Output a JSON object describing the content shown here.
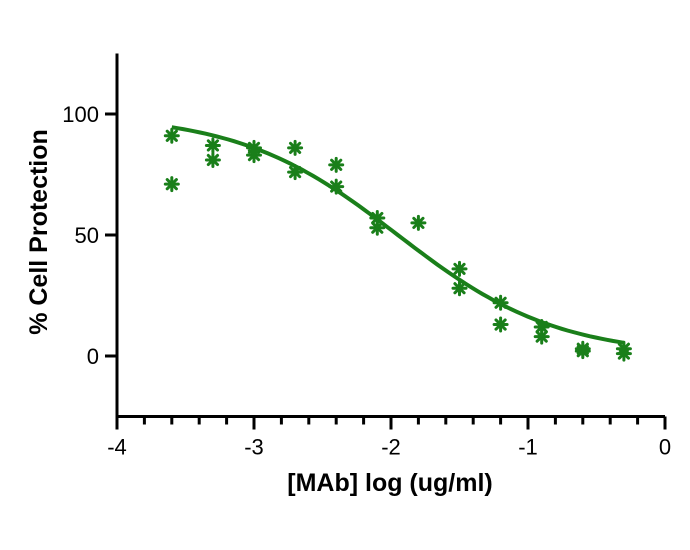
{
  "chart_data": {
    "type": "scatter",
    "title": "",
    "xlabel": "[MAb] log (ug/ml)",
    "ylabel": "% Cell Protection",
    "xlim": [
      -4,
      0
    ],
    "ylim": [
      -25,
      125
    ],
    "x_ticks": [
      -4,
      -3,
      -2,
      -1,
      0
    ],
    "x_tick_labels": [
      "-4",
      "-3",
      "-2",
      "-1",
      "0"
    ],
    "y_ticks": [
      0,
      50,
      100
    ],
    "y_tick_labels": [
      "0",
      "50",
      "100"
    ],
    "grid": false,
    "legend": "none",
    "colors": {
      "data": "#1a7f1a",
      "axis": "#000000"
    },
    "marker": "asterisk-icon",
    "points": [
      {
        "x": -3.6,
        "y": 91
      },
      {
        "x": -3.6,
        "y": 71
      },
      {
        "x": -3.3,
        "y": 87
      },
      {
        "x": -3.3,
        "y": 81
      },
      {
        "x": -3.0,
        "y": 86
      },
      {
        "x": -3.0,
        "y": 83
      },
      {
        "x": -2.7,
        "y": 86
      },
      {
        "x": -2.7,
        "y": 76
      },
      {
        "x": -2.4,
        "y": 79
      },
      {
        "x": -2.4,
        "y": 70
      },
      {
        "x": -2.1,
        "y": 57
      },
      {
        "x": -2.1,
        "y": 53
      },
      {
        "x": -1.8,
        "y": 55
      },
      {
        "x": -1.5,
        "y": 36
      },
      {
        "x": -1.5,
        "y": 28
      },
      {
        "x": -1.2,
        "y": 22
      },
      {
        "x": -1.2,
        "y": 13
      },
      {
        "x": -0.9,
        "y": 12
      },
      {
        "x": -0.9,
        "y": 8
      },
      {
        "x": -0.6,
        "y": 3
      },
      {
        "x": -0.6,
        "y": 2
      },
      {
        "x": -0.3,
        "y": 3
      },
      {
        "x": -0.3,
        "y": 1
      }
    ],
    "fit_curve": {
      "type": "sigmoid",
      "top": 100,
      "bottom": 0,
      "ec50_log": -1.95,
      "hill_slope": -0.75,
      "x_range": [
        -3.6,
        -0.3
      ]
    }
  }
}
